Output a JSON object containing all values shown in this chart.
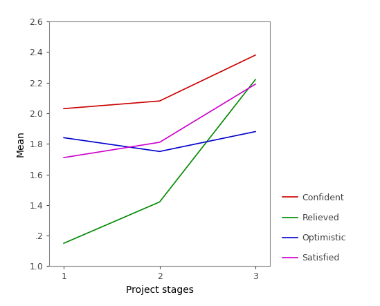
{
  "x": [
    1,
    2,
    3
  ],
  "confident": [
    2.03,
    2.08,
    2.38
  ],
  "relieved": [
    1.15,
    1.42,
    2.22
  ],
  "optimistic": [
    1.84,
    1.75,
    1.88
  ],
  "satisfied": [
    1.71,
    1.81,
    2.19
  ],
  "colors": {
    "confident": "#cc0000",
    "relieved": "#008800",
    "optimistic": "#0000cc",
    "satisfied": "#cc00cc"
  },
  "xlabel": "Project stages",
  "ylabel": "Mean",
  "ylim": [
    1.0,
    2.6
  ],
  "xlim": [
    0.85,
    3.15
  ],
  "yticks": [
    1.0,
    1.2,
    1.4,
    1.6,
    1.8,
    2.0,
    2.2,
    2.4,
    2.6
  ],
  "ytick_labels": [
    "1.0",
    ".2",
    "1.4",
    "1.6",
    "1.8",
    "2.0",
    "2.2",
    "2.4",
    "2.6"
  ],
  "xticks": [
    1,
    2,
    3
  ],
  "legend_labels": [
    "Confident",
    "Relieved",
    "Optimistic",
    "Satisfied"
  ],
  "legend_colors": [
    "#cc0000",
    "#008800",
    "#0000cc",
    "#cc00cc"
  ],
  "background_color": "#ffffff",
  "linewidth": 1.2,
  "axis_fontsize": 10,
  "tick_fontsize": 9,
  "legend_fontsize": 9,
  "spine_color": "#888888"
}
